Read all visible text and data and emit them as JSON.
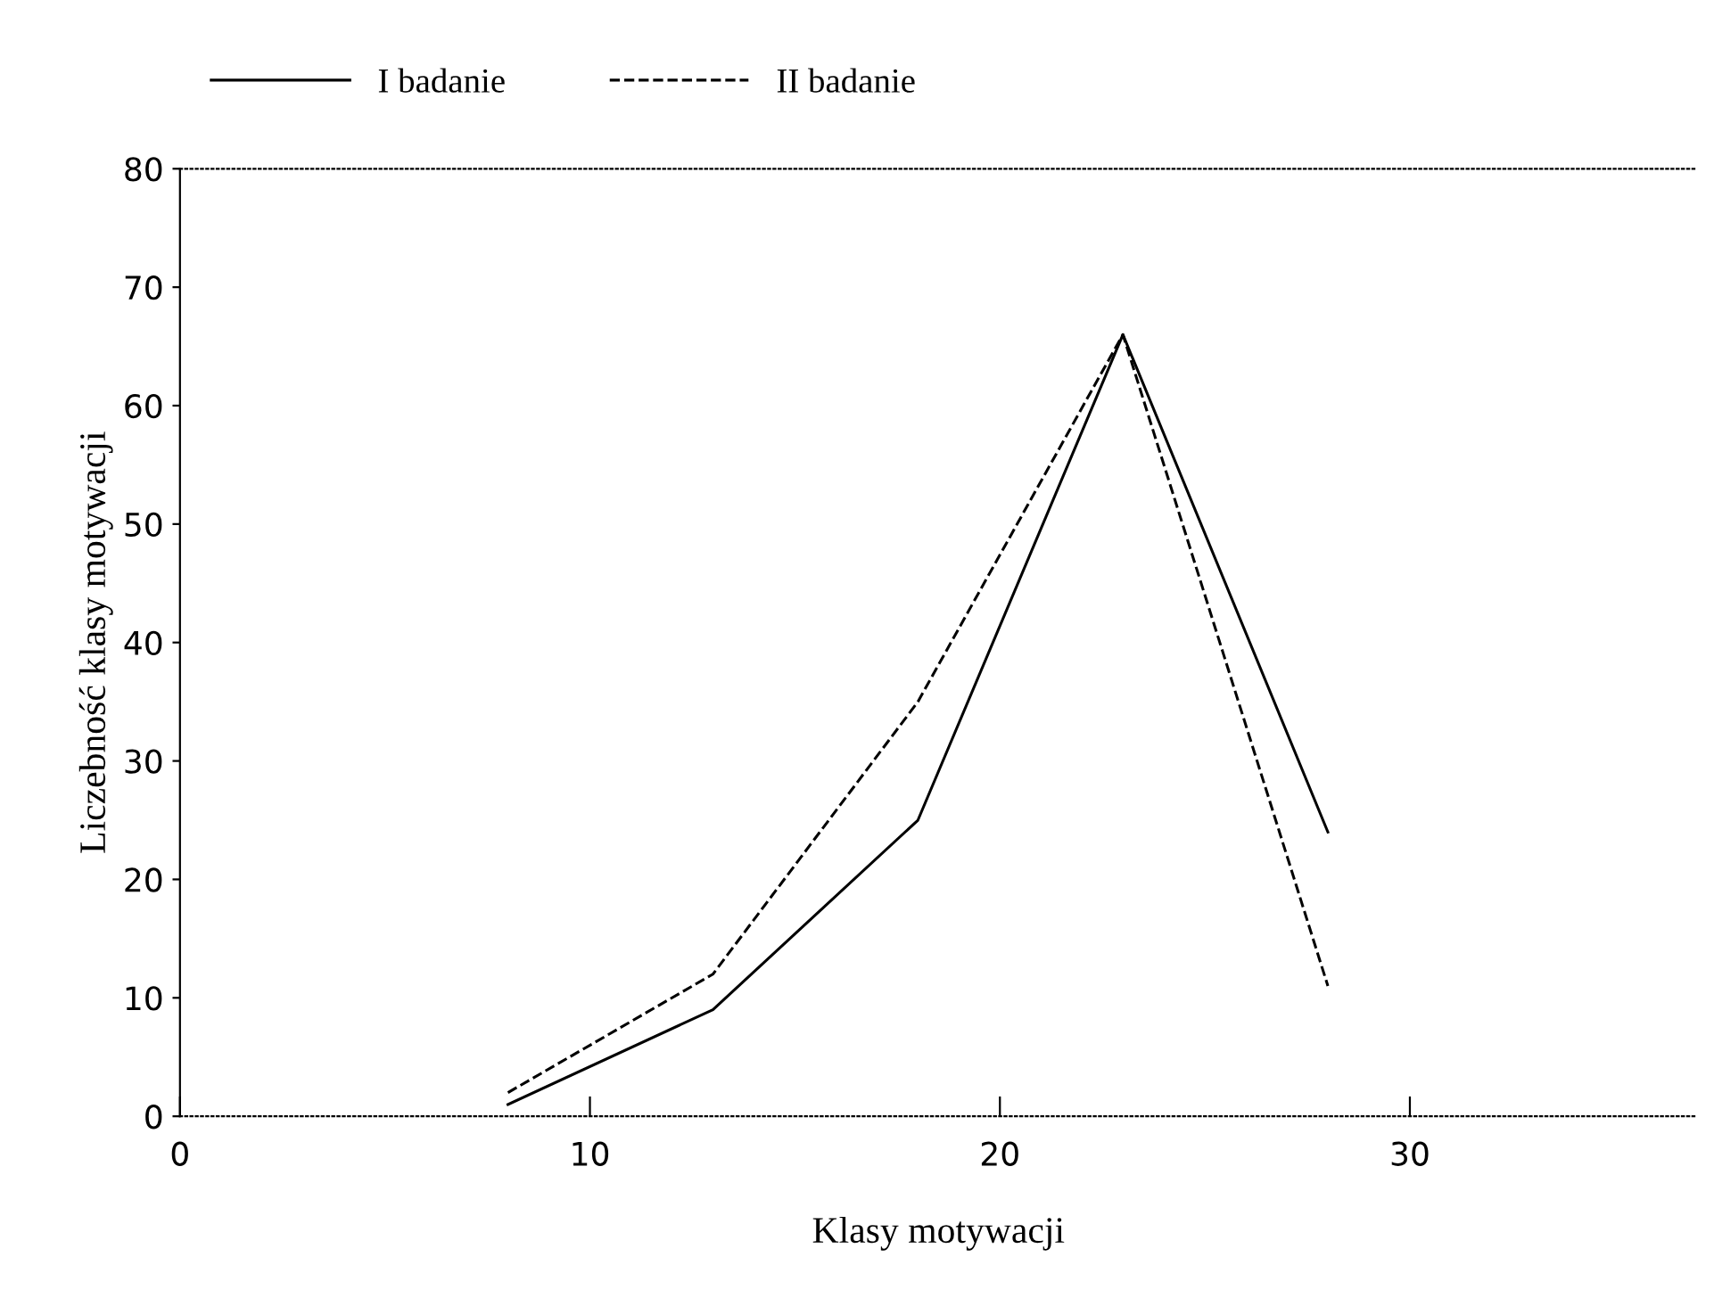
{
  "chart_data": {
    "type": "line",
    "xlabel": "Klasy motywacji",
    "ylabel": "Liczebność klasy motywacji",
    "x": [
      8,
      13,
      18,
      23,
      28
    ],
    "series": [
      {
        "name": "I badanie",
        "color": "#000000",
        "values": [
          1,
          9,
          25,
          66,
          24
        ],
        "line_style": "solid"
      },
      {
        "name": "II badanie",
        "color": "#000000",
        "values": [
          2,
          12,
          35,
          66,
          11
        ],
        "line_style": "dashed"
      }
    ],
    "xlim": [
      0,
      37
    ],
    "ylim": [
      0,
      80
    ],
    "xticks": [
      0,
      10,
      20,
      30
    ],
    "yticks": [
      0,
      10,
      20,
      30,
      40,
      50,
      60,
      70,
      80
    ],
    "grid": false,
    "legend": "top left",
    "marker": "none"
  }
}
